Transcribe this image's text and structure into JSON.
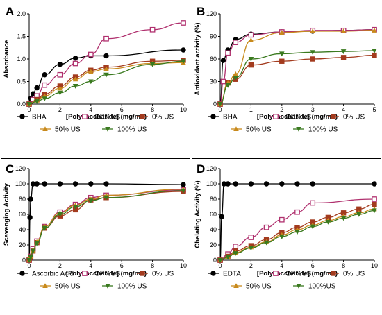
{
  "chart_data": [
    {
      "panel_label": "A",
      "type": "scatter",
      "xlabel": "[Polysaccharide] (mg/mL)",
      "ylabel": "Absorbance",
      "xlim": [
        0,
        10
      ],
      "ylim": [
        0,
        2.0
      ],
      "xticks": [
        0,
        2,
        4,
        6,
        8,
        10
      ],
      "yticks": [
        0,
        0.5,
        1.0,
        1.5,
        2.0
      ],
      "ytick_labels": [
        "0.0",
        "0.5",
        "1.0",
        "1.5",
        "2.0"
      ],
      "fit_curves": true,
      "series": [
        {
          "name": "BHA",
          "color": "#000000",
          "marker": "circle-filled",
          "x": [
            0,
            0.1,
            0.25,
            0.5,
            1,
            2,
            3,
            4,
            5,
            10
          ],
          "y": [
            0,
            0.13,
            0.23,
            0.36,
            0.65,
            0.88,
            1.02,
            1.07,
            1.07,
            1.2
          ]
        },
        {
          "name": "OP%US",
          "color": "#b0306e",
          "marker": "square-open",
          "x": [
            0,
            0.25,
            0.5,
            1,
            2,
            3,
            4,
            5,
            8,
            10
          ],
          "y": [
            0,
            0.1,
            0.18,
            0.42,
            0.65,
            0.9,
            1.1,
            1.45,
            1.65,
            1.8
          ]
        },
        {
          "name": "0% US",
          "color": "#a33b1e",
          "marker": "square-filled",
          "x": [
            0,
            0.5,
            1,
            2,
            3,
            4,
            5,
            8,
            10
          ],
          "y": [
            0,
            0.1,
            0.22,
            0.4,
            0.6,
            0.75,
            0.82,
            0.95,
            0.97
          ]
        },
        {
          "name": "50% US",
          "color": "#c88a1c",
          "marker": "triangle-filled",
          "x": [
            0,
            0.5,
            1,
            2,
            3,
            4,
            5,
            8,
            10
          ],
          "y": [
            0,
            0.08,
            0.18,
            0.35,
            0.55,
            0.72,
            0.78,
            0.9,
            0.92
          ]
        },
        {
          "name": "100% US",
          "color": "#3a7a1f",
          "marker": "triangle-down-filled",
          "x": [
            0,
            0.5,
            1,
            2,
            3,
            4,
            5,
            8,
            10
          ],
          "y": [
            0,
            0.06,
            0.12,
            0.25,
            0.4,
            0.5,
            0.65,
            0.88,
            0.95
          ]
        }
      ],
      "legend": [
        [
          "BHA",
          "OP%US",
          "0% US"
        ],
        [
          "50% US",
          "100% US"
        ]
      ]
    },
    {
      "panel_label": "B",
      "type": "scatter",
      "xlabel": "[Polysaccharide] (mg/mL)",
      "ylabel": "Antioxidant activity (%)",
      "xlim": [
        0,
        5
      ],
      "ylim": [
        0,
        120
      ],
      "xticks": [
        0,
        1,
        2,
        3,
        4,
        5
      ],
      "yticks": [
        0,
        30,
        60,
        90,
        120
      ],
      "fit_curves": true,
      "series": [
        {
          "name": "BHA",
          "color": "#000000",
          "marker": "circle-filled",
          "x": [
            0,
            0.1,
            0.25,
            0.5,
            1,
            2,
            3,
            4,
            5
          ],
          "y": [
            0,
            58,
            72,
            86,
            93,
            96,
            97,
            98,
            99
          ]
        },
        {
          "name": "OP%US",
          "color": "#b0306e",
          "marker": "square-open",
          "x": [
            0,
            0.1,
            0.25,
            0.5,
            1,
            2,
            3,
            4,
            5
          ],
          "y": [
            0,
            30,
            68,
            82,
            92,
            96,
            98,
            98,
            99
          ]
        },
        {
          "name": "0% US",
          "color": "#a33b1e",
          "marker": "square-filled",
          "x": [
            0,
            0.25,
            0.5,
            1,
            2,
            3,
            4,
            5
          ],
          "y": [
            0,
            28,
            33,
            52,
            57,
            60,
            62,
            65
          ]
        },
        {
          "name": "50% US",
          "color": "#c88a1c",
          "marker": "triangle-filled",
          "x": [
            0,
            0.25,
            0.5,
            1,
            2,
            3,
            4,
            5
          ],
          "y": [
            0,
            28,
            40,
            85,
            95,
            97,
            97,
            98
          ]
        },
        {
          "name": "100% US",
          "color": "#3a7a1f",
          "marker": "triangle-down-filled",
          "x": [
            0,
            0.25,
            0.5,
            1,
            2,
            3,
            4,
            5
          ],
          "y": [
            0,
            25,
            35,
            60,
            67,
            69,
            70,
            71
          ]
        }
      ],
      "legend": [
        [
          "BHA",
          "OP%US",
          "0% US"
        ],
        [
          "50% US",
          "100% US"
        ]
      ]
    },
    {
      "panel_label": "C",
      "type": "scatter",
      "xlabel": "[Polysaccharide] (mg/mL)",
      "ylabel": "Scavenging Activity",
      "xlim": [
        0,
        10
      ],
      "ylim": [
        0,
        120
      ],
      "xticks": [
        0,
        2,
        4,
        6,
        8,
        10
      ],
      "yticks": [
        0,
        20,
        40,
        60,
        80,
        100,
        120
      ],
      "fit_curves": true,
      "series": [
        {
          "name": "Ascorbic Acid",
          "color": "#000000",
          "marker": "circle-filled",
          "x": [
            0,
            0.05,
            0.1,
            0.25,
            0.5,
            1,
            2,
            3,
            4,
            5,
            10
          ],
          "y": [
            0,
            56,
            80,
            100,
            100,
            100,
            100,
            100,
            100,
            100,
            99
          ]
        },
        {
          "name": "OP%US",
          "color": "#b0306e",
          "marker": "square-open",
          "x": [
            0,
            0.1,
            0.25,
            0.5,
            1,
            2,
            3,
            4,
            5,
            10
          ],
          "y": [
            0,
            5,
            15,
            25,
            44,
            63,
            73,
            82,
            85,
            92
          ]
        },
        {
          "name": "0% US",
          "color": "#a33b1e",
          "marker": "square-filled",
          "x": [
            0,
            0.1,
            0.25,
            0.5,
            1,
            2,
            3,
            4,
            5,
            10
          ],
          "y": [
            0,
            4,
            12,
            23,
            42,
            58,
            66,
            79,
            82,
            90
          ]
        },
        {
          "name": "50% US",
          "color": "#c88a1c",
          "marker": "triangle-filled",
          "x": [
            0,
            0.1,
            0.25,
            0.5,
            1,
            2,
            3,
            4,
            5,
            10
          ],
          "y": [
            0,
            5,
            13,
            24,
            44,
            62,
            72,
            80,
            85,
            93
          ]
        },
        {
          "name": "100% US",
          "color": "#3a7a1f",
          "marker": "triangle-down-filled",
          "x": [
            0,
            0.1,
            0.25,
            0.5,
            1,
            2,
            3,
            4,
            5,
            10
          ],
          "y": [
            0,
            4,
            12,
            22,
            42,
            60,
            70,
            78,
            82,
            91
          ]
        }
      ],
      "legend": [
        [
          "Ascorbic Acid",
          "OP%US",
          "0% US"
        ],
        [
          "50% US",
          "100% US"
        ]
      ]
    },
    {
      "panel_label": "D",
      "type": "scatter",
      "xlabel": "[Polysaccharide] (mg/mL)",
      "ylabel": "Chelating Activity (%)",
      "xlim": [
        0,
        10
      ],
      "ylim": [
        0,
        120
      ],
      "xticks": [
        0,
        2,
        4,
        6,
        8,
        10
      ],
      "yticks": [
        0,
        20,
        40,
        60,
        80,
        100,
        120
      ],
      "fit_curves": true,
      "series": [
        {
          "name": "EDTA",
          "color": "#000000",
          "marker": "circle-filled",
          "x": [
            0,
            0.1,
            0.25,
            0.5,
            1,
            2,
            3,
            4,
            5,
            6,
            10
          ],
          "y": [
            0,
            57,
            100,
            100,
            100,
            100,
            100,
            100,
            100,
            100,
            100
          ]
        },
        {
          "name": "OP%US",
          "color": "#b0306e",
          "marker": "square-open",
          "x": [
            0,
            0.5,
            1,
            2,
            3,
            4,
            5,
            6,
            10
          ],
          "y": [
            0,
            8,
            18,
            30,
            43,
            53,
            63,
            75,
            80
          ]
        },
        {
          "name": "0% US",
          "color": "#a33b1e",
          "marker": "square-filled",
          "x": [
            0,
            0.5,
            1,
            2,
            3,
            4,
            5,
            6,
            7,
            8,
            9,
            10
          ],
          "y": [
            0,
            5,
            12,
            19,
            27,
            36,
            43,
            50,
            56,
            62,
            67,
            73
          ]
        },
        {
          "name": "50% US",
          "color": "#c88a1c",
          "marker": "triangle-filled",
          "x": [
            0,
            0.5,
            1,
            2,
            3,
            4,
            5,
            6,
            7,
            8,
            9,
            10
          ],
          "y": [
            0,
            4,
            10,
            17,
            24,
            33,
            40,
            46,
            52,
            57,
            62,
            67
          ]
        },
        {
          "name": "100%US",
          "color": "#3a7a1f",
          "marker": "triangle-down-filled",
          "x": [
            0,
            0.5,
            1,
            2,
            3,
            4,
            5,
            6,
            7,
            8,
            9,
            10
          ],
          "y": [
            0,
            4,
            9,
            16,
            23,
            31,
            37,
            44,
            50,
            55,
            60,
            65
          ]
        }
      ],
      "legend": [
        [
          "EDTA",
          "OP%US",
          "0% US"
        ],
        [
          "50% US",
          "100%US"
        ]
      ]
    }
  ]
}
